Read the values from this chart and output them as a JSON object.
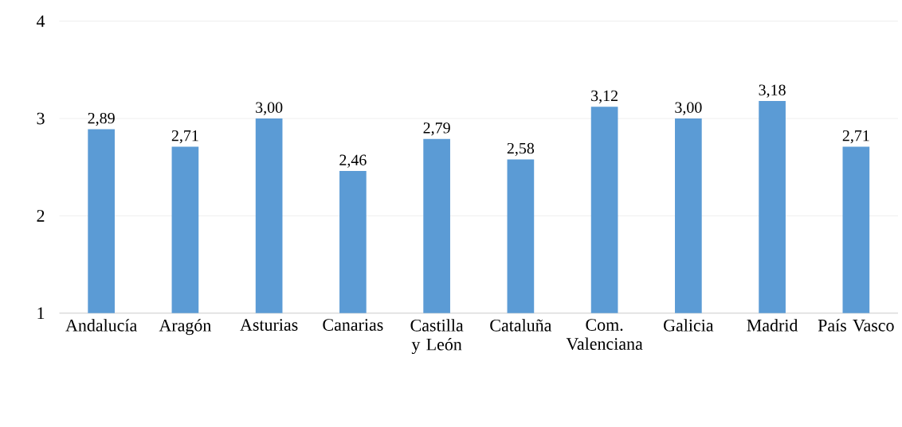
{
  "chart_data": {
    "type": "bar",
    "categories": [
      "Andalucía",
      "Aragón",
      "Asturias",
      "Canarias",
      "Castilla y León",
      "Cataluña",
      "Com. Valenciana",
      "Galicia",
      "Madrid",
      "País Vasco"
    ],
    "values": [
      2.89,
      2.71,
      3.0,
      2.46,
      2.79,
      2.58,
      3.12,
      3.0,
      3.18,
      2.71
    ],
    "value_labels": [
      "2,89",
      "2,71",
      "3,00",
      "2,46",
      "2,79",
      "2,58",
      "3,12",
      "3,00",
      "3,18",
      "2,71"
    ],
    "color": "#5b9bd5",
    "ylim": [
      1,
      4
    ],
    "yticks": [
      1,
      2,
      3,
      4
    ],
    "grid": "y"
  }
}
